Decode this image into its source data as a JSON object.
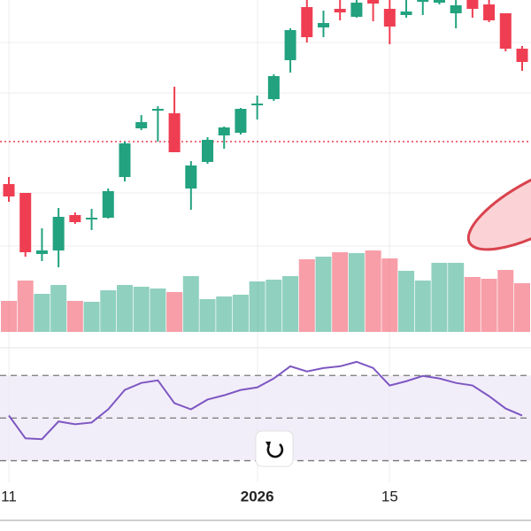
{
  "chart_data": {
    "type": "candlestick",
    "categories": [
      "11",
      null,
      null,
      null,
      null,
      null,
      null,
      null,
      null,
      null,
      null,
      null,
      null,
      null,
      null,
      "2026",
      null,
      null,
      null,
      null,
      null,
      null,
      null,
      "15",
      null,
      null,
      null,
      null,
      null,
      null,
      null,
      null
    ],
    "open": [
      192,
      182,
      113,
      117,
      157,
      152,
      154,
      200,
      255,
      275,
      272,
      187,
      217,
      247,
      250,
      281,
      288,
      332,
      392,
      369,
      390,
      381,
      400,
      390,
      383,
      398,
      397,
      385,
      400,
      395,
      385,
      345
    ],
    "high": [
      200,
      182,
      142,
      165,
      160,
      164,
      187,
      240,
      270,
      280,
      302,
      218,
      245,
      257,
      278,
      292,
      316,
      368,
      400,
      388,
      400,
      400,
      400,
      400,
      400,
      400,
      400,
      400,
      400,
      400,
      385,
      348
    ],
    "low": [
      172,
      110,
      105,
      98,
      147,
      140,
      153,
      195,
      253,
      240,
      228,
      163,
      215,
      232,
      248,
      265,
      286,
      318,
      352,
      358,
      377,
      380,
      376,
      350,
      380,
      383,
      395,
      368,
      380,
      375,
      342,
      320
    ],
    "close": [
      178,
      115,
      117,
      155,
      149,
      154,
      184,
      238,
      262,
      277,
      228,
      213,
      242,
      256,
      277,
      283,
      314,
      366,
      358,
      374,
      386,
      397,
      396,
      370,
      387,
      400,
      400,
      394,
      390,
      377,
      345,
      330
    ],
    "volume": [
      35,
      58,
      43,
      53,
      35,
      34,
      47,
      53,
      51,
      49,
      45,
      63,
      37,
      40,
      42,
      57,
      59,
      63,
      82,
      85,
      90,
      89,
      92,
      83,
      69,
      58,
      78,
      78,
      62,
      60,
      70,
      55
    ],
    "up_color": "#22a27f",
    "down_color": "#ef3e52",
    "ylim": [
      0,
      400
    ],
    "volume_ylim": [
      0,
      375
    ],
    "price_line": 240,
    "rsi": {
      "values": [
        51.2,
        40.5,
        40.1,
        48.4,
        47.1,
        47.9,
        54.1,
        63.2,
        66.5,
        67.7,
        57.0,
        54.1,
        58.7,
        60.7,
        63.2,
        64.4,
        68.6,
        74.3,
        71.9,
        73.5,
        74.3,
        76.4,
        73.5,
        65.3,
        67.3,
        69.8,
        68.6,
        66.5,
        65.3,
        60.3,
        54.5,
        51.2
      ],
      "ylim": [
        24,
        78
      ],
      "levels": [
        30,
        50,
        70
      ],
      "color": "#7e57c2"
    }
  }
}
